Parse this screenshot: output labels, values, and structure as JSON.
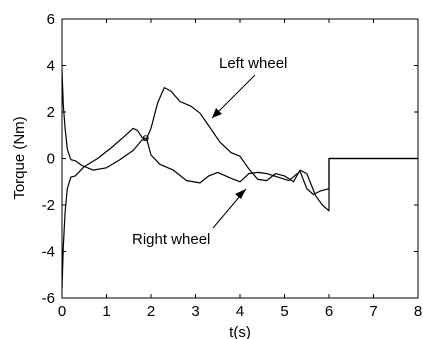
{
  "chart_data": {
    "type": "line",
    "title": "",
    "xlabel": "t(s)",
    "ylabel": "Torque (Nm)",
    "xlim": [
      0,
      8
    ],
    "ylim": [
      -6,
      6
    ],
    "xticks": [
      0,
      1,
      2,
      3,
      4,
      5,
      6,
      7,
      8
    ],
    "yticks": [
      -6,
      -4,
      -2,
      0,
      2,
      4,
      6
    ],
    "grid": false,
    "series_color": "#000000",
    "series": [
      {
        "name": "Left wheel",
        "points": [
          [
            0.0,
            -5.6
          ],
          [
            0.03,
            -3.8
          ],
          [
            0.07,
            -2.3
          ],
          [
            0.12,
            -1.3
          ],
          [
            0.2,
            -0.8
          ],
          [
            0.3,
            -0.75
          ],
          [
            0.5,
            -0.35
          ],
          [
            0.8,
            0.0
          ],
          [
            1.1,
            0.45
          ],
          [
            1.4,
            0.95
          ],
          [
            1.6,
            1.3
          ],
          [
            1.7,
            1.2
          ],
          [
            1.8,
            0.9
          ],
          [
            1.9,
            0.85
          ],
          [
            2.0,
            1.3
          ],
          [
            2.15,
            2.4
          ],
          [
            2.3,
            3.05
          ],
          [
            2.45,
            2.9
          ],
          [
            2.65,
            2.45
          ],
          [
            2.9,
            2.25
          ],
          [
            3.1,
            1.95
          ],
          [
            3.3,
            1.4
          ],
          [
            3.55,
            0.7
          ],
          [
            3.8,
            0.25
          ],
          [
            4.0,
            0.1
          ],
          [
            4.2,
            -0.45
          ],
          [
            4.4,
            -0.9
          ],
          [
            4.6,
            -0.95
          ],
          [
            4.8,
            -0.65
          ],
          [
            5.0,
            -0.75
          ],
          [
            5.2,
            -1.0
          ],
          [
            5.35,
            -0.5
          ],
          [
            5.5,
            -0.65
          ],
          [
            5.7,
            -1.6
          ],
          [
            5.85,
            -2.0
          ],
          [
            6.0,
            -2.25
          ],
          [
            6.0,
            0.0
          ],
          [
            8.0,
            0.0
          ]
        ]
      },
      {
        "name": "Right wheel",
        "points": [
          [
            0.0,
            3.8
          ],
          [
            0.03,
            2.3
          ],
          [
            0.07,
            1.3
          ],
          [
            0.12,
            0.4
          ],
          [
            0.2,
            -0.05
          ],
          [
            0.3,
            -0.1
          ],
          [
            0.45,
            -0.3
          ],
          [
            0.7,
            -0.5
          ],
          [
            1.0,
            -0.4
          ],
          [
            1.3,
            -0.05
          ],
          [
            1.6,
            0.35
          ],
          [
            1.8,
            0.8
          ],
          [
            1.9,
            0.85
          ],
          [
            2.0,
            0.15
          ],
          [
            2.2,
            -0.25
          ],
          [
            2.5,
            -0.5
          ],
          [
            2.8,
            -0.95
          ],
          [
            3.1,
            -1.05
          ],
          [
            3.3,
            -0.75
          ],
          [
            3.5,
            -0.6
          ],
          [
            3.8,
            -0.85
          ],
          [
            4.0,
            -1.0
          ],
          [
            4.2,
            -0.65
          ],
          [
            4.4,
            -0.6
          ],
          [
            4.6,
            -0.65
          ],
          [
            4.85,
            -0.8
          ],
          [
            5.1,
            -0.95
          ],
          [
            5.35,
            -0.55
          ],
          [
            5.5,
            -1.3
          ],
          [
            5.65,
            -1.55
          ],
          [
            5.8,
            -1.4
          ],
          [
            6.0,
            -1.3
          ],
          [
            6.0,
            0.0
          ],
          [
            8.0,
            0.0
          ]
        ]
      }
    ],
    "annotations": [
      {
        "text": "Left wheel",
        "series": "Left wheel"
      },
      {
        "text": "Right wheel",
        "series": "Right wheel"
      }
    ]
  }
}
